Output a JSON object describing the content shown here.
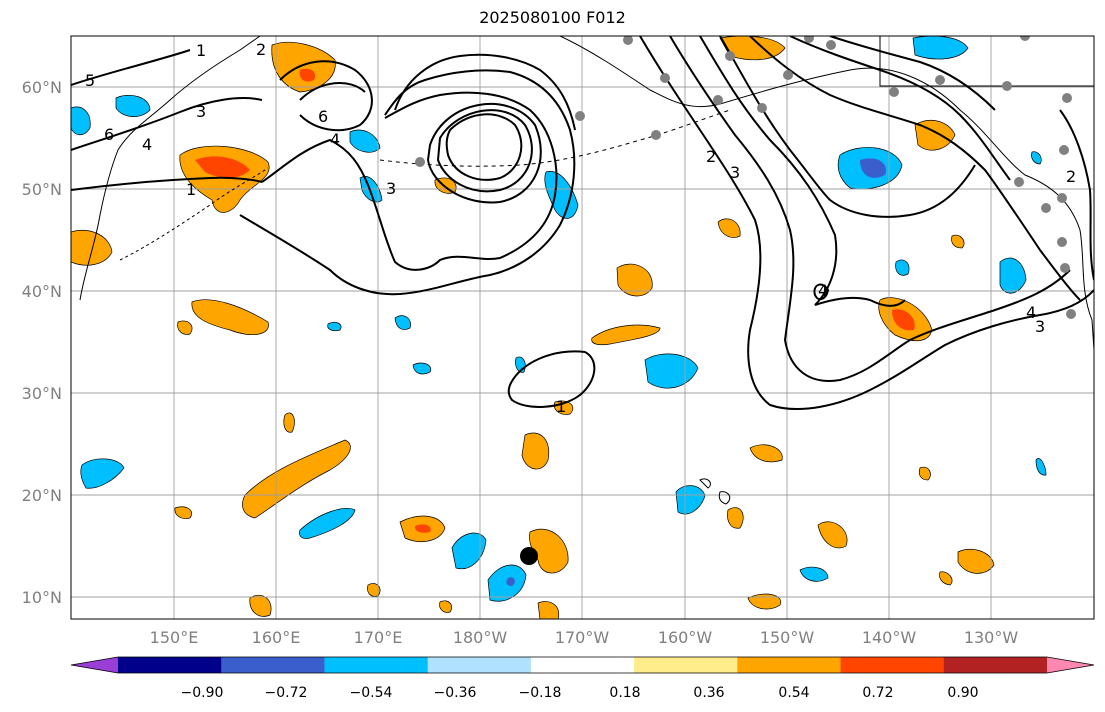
{
  "title": "2025080100 F012",
  "lat_labels": [
    "60°N",
    "50°N",
    "40°N",
    "30°N",
    "20°N",
    "10°N"
  ],
  "lon_labels": [
    "150°E",
    "160°E",
    "170°E",
    "180°W",
    "170°W",
    "160°W",
    "150°W",
    "140°W",
    "130°W"
  ],
  "colorbar": {
    "ticks": [
      "−0.90",
      "−0.72",
      "−0.54",
      "−0.36",
      "−0.18",
      "0.18",
      "0.36",
      "0.54",
      "0.72",
      "0.90"
    ],
    "colors": [
      "#9a3fd6",
      "#00008b",
      "#3a5fcd",
      "#00bfff",
      "#b0e2ff",
      "#ffffff",
      "#ffec8b",
      "#ffa500",
      "#ff4500",
      "#b22222",
      "#ff88b0"
    ]
  },
  "contour_labels": [
    "1",
    "2",
    "3",
    "4",
    "5",
    "6",
    "1",
    "1",
    "2",
    "3",
    "4",
    "6",
    "4",
    "3",
    "2",
    "4",
    "3"
  ],
  "colors": {
    "axis_label": "#808080",
    "grid": "#a0a0a0",
    "contour": "#000000"
  }
}
